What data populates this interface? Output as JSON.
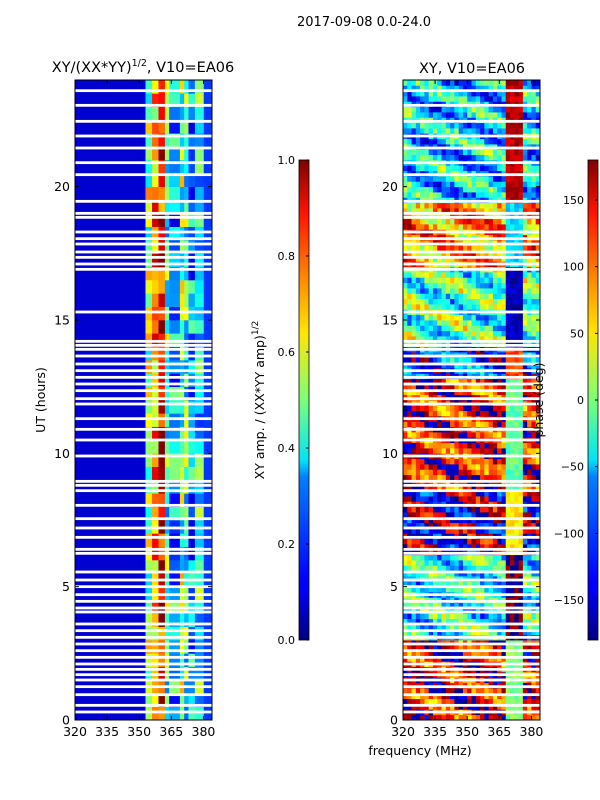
{
  "figure": {
    "suptitle": "2017-09-08 0.0-24.0",
    "shared_xlabel": "frequency (MHz)"
  },
  "chart_data": [
    {
      "type": "heatmap",
      "title_main": "XY/(XX*YY)",
      "title_sup": "1/2",
      "title_rest": ", V10=EA06",
      "xlabel": "",
      "ylabel": "UT (hours)",
      "xlim": [
        320,
        384
      ],
      "ylim": [
        0,
        24
      ],
      "x_ticks": [
        320,
        335,
        350,
        365,
        380
      ],
      "y_ticks": [
        0,
        5,
        10,
        15,
        20
      ],
      "colormap": "jet",
      "colorbar": {
        "label_main": "XY amp. / (XX*YY amp)",
        "label_sup": "1/2",
        "range": [
          0.0,
          1.0
        ],
        "ticks": [
          0.0,
          0.2,
          0.4,
          0.6,
          0.8,
          1.0
        ],
        "tick_labels": [
          "0.0",
          "0.2",
          "0.4",
          "0.6",
          "0.8",
          "1.0"
        ]
      },
      "flagged_hours": [
        0.3,
        0.55,
        0.95,
        1.25,
        1.5,
        1.7,
        1.9,
        2.1,
        2.35,
        2.6,
        2.85,
        3.1,
        3.35,
        3.6,
        4.05,
        4.2,
        4.45,
        4.7,
        5.0,
        5.25,
        5.55,
        6.25,
        6.4,
        6.85,
        7.2,
        7.55,
        8.05,
        8.6,
        8.8,
        8.95,
        9.9,
        10.5,
        10.9,
        11.3,
        11.85,
        12.05,
        12.35,
        12.6,
        12.85,
        13.1,
        13.35,
        13.65,
        13.9,
        14.05,
        14.2,
        15.3,
        16.9,
        17.1,
        17.35,
        17.55,
        17.85,
        18.05,
        18.3,
        18.85,
        19.0,
        19.45,
        20.45,
        20.9,
        21.45,
        21.9,
        22.45,
        23.05,
        23.6
      ],
      "amplitude_by_frequency": [
        {
          "range": [
            320,
            352
          ],
          "amp": 0.08
        },
        {
          "range": [
            352,
            353
          ],
          "amp": 0.12
        },
        {
          "range": [
            353,
            356
          ],
          "amp": 0.55
        },
        {
          "range": [
            356,
            359
          ],
          "amp": 0.72
        },
        {
          "range": [
            359,
            362
          ],
          "amp": 0.9
        },
        {
          "range": [
            362,
            364
          ],
          "amp": 0.45
        },
        {
          "range": [
            364,
            369
          ],
          "amp": 0.32
        },
        {
          "range": [
            369,
            371
          ],
          "amp": 0.5
        },
        {
          "range": [
            371,
            373
          ],
          "amp": 0.42
        },
        {
          "range": [
            373,
            376
          ],
          "amp": 0.28
        },
        {
          "range": [
            376,
            380
          ],
          "amp": 0.38
        },
        {
          "range": [
            380,
            384
          ],
          "amp": 0.18
        }
      ]
    },
    {
      "type": "heatmap",
      "title": "XY, V10=EA06",
      "xlabel": "frequency (MHz)",
      "ylabel": "",
      "xlim": [
        320,
        384
      ],
      "ylim": [
        0,
        24
      ],
      "x_ticks": [
        320,
        335,
        350,
        365,
        380
      ],
      "y_ticks": [
        0,
        5,
        10,
        15,
        20
      ],
      "colormap": "jet",
      "colorbar": {
        "label": "phase (deg)",
        "range": [
          -180,
          180
        ],
        "ticks": [
          -150,
          -100,
          -50,
          0,
          50,
          100,
          150
        ],
        "tick_labels": [
          "−150",
          "−100",
          "−50",
          "0",
          "50",
          "100",
          "150"
        ]
      },
      "flagged_hours": [
        0.3,
        0.55,
        0.95,
        1.25,
        1.5,
        1.7,
        1.9,
        2.1,
        2.35,
        2.6,
        2.85,
        3.1,
        3.35,
        3.6,
        4.05,
        4.2,
        4.45,
        4.7,
        5.0,
        5.25,
        5.55,
        6.25,
        6.4,
        6.85,
        7.2,
        7.55,
        8.05,
        8.6,
        8.8,
        8.95,
        9.9,
        10.5,
        10.9,
        11.3,
        11.85,
        12.05,
        12.35,
        12.6,
        12.85,
        13.1,
        13.35,
        13.65,
        13.9,
        14.05,
        14.2,
        15.3,
        16.9,
        17.1,
        17.35,
        17.55,
        17.85,
        18.05,
        18.3,
        18.85,
        19.0,
        19.45,
        20.45,
        20.9,
        21.45,
        21.9,
        22.45,
        23.05,
        23.6
      ],
      "phase_bands": [
        {
          "hours": [
            0,
            3
          ],
          "phase": 140
        },
        {
          "hours": [
            3,
            6.3
          ],
          "phase": -40
        },
        {
          "hours": [
            6.3,
            8.7
          ],
          "phase": -170
        },
        {
          "hours": [
            8.7,
            12.9
          ],
          "phase": 130
        },
        {
          "hours": [
            12.9,
            14.1
          ],
          "phase": -110
        },
        {
          "hours": [
            14.1,
            17
          ],
          "phase": -20
        },
        {
          "hours": [
            17,
            19.5
          ],
          "phase": 80
        },
        {
          "hours": [
            19.5,
            24
          ],
          "phase": -60
        }
      ]
    }
  ]
}
